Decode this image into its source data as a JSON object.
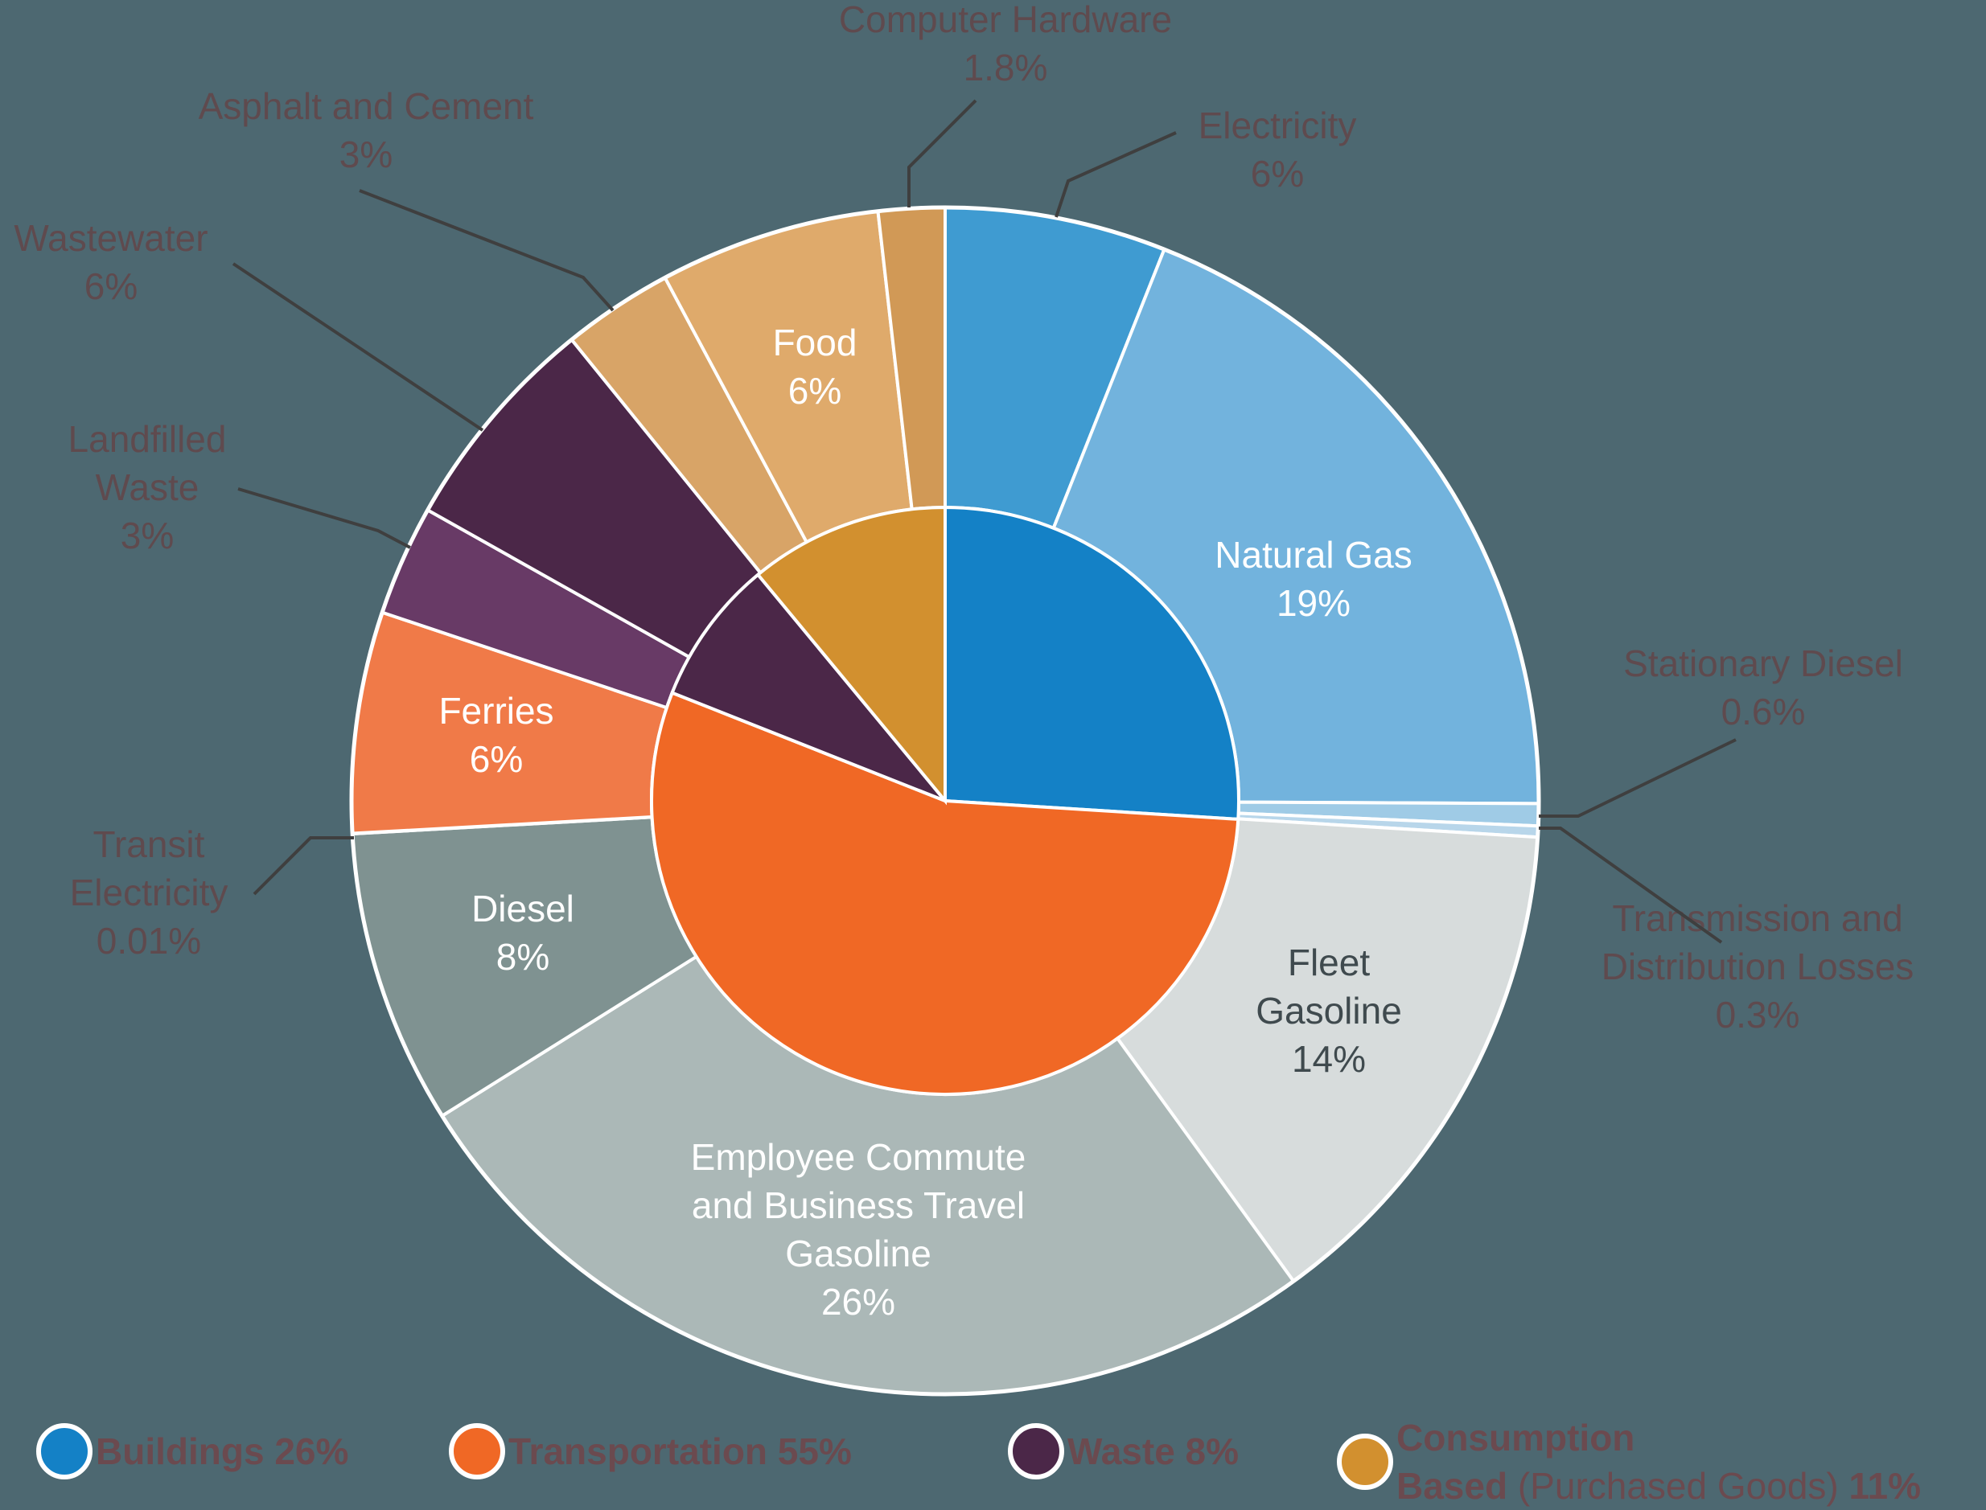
{
  "chart_data": {
    "type": "pie",
    "style": "nested donut (inner ring = categories, outer ring = subcategories)",
    "colors": {
      "background": "#4d6871",
      "label_outside": "#5f4a4e",
      "label_inside": "#ffffff",
      "label_dark": "#3f4a4e"
    },
    "categories": [
      {
        "name": "Buildings",
        "value": 26,
        "color": "#1481c6"
      },
      {
        "name": "Transportation",
        "value": 55,
        "color": "#f06825"
      },
      {
        "name": "Waste",
        "value": 8,
        "color": "#4b2748"
      },
      {
        "name": "Consumption Based",
        "value": 11,
        "color": "#d2902f"
      }
    ],
    "subcategories": [
      {
        "name": "Electricity",
        "value": 6,
        "pct_label": "6%",
        "category": "Buildings",
        "color": "#3f9bd1"
      },
      {
        "name": "Natural Gas",
        "value": 19,
        "pct_label": "19%",
        "category": "Buildings",
        "color": "#72b3dd"
      },
      {
        "name": "Stationary Diesel",
        "value": 0.6,
        "pct_label": "0.6%",
        "category": "Buildings",
        "color": "#9fcbe6"
      },
      {
        "name": "Transmission and Distribution Losses",
        "value": 0.3,
        "pct_label": "0.3%",
        "category": "Buildings",
        "color": "#b8d6ea"
      },
      {
        "name": "Fleet Gasoline",
        "value": 14,
        "pct_label": "14%",
        "category": "Transportation",
        "color": "#d7dcdc"
      },
      {
        "name": "Employee Commute and Business Travel Gasoline",
        "value": 26,
        "pct_label": "26%",
        "category": "Transportation",
        "color": "#abb8b7"
      },
      {
        "name": "Diesel",
        "value": 8,
        "pct_label": "8%",
        "category": "Transportation",
        "color": "#7f9291"
      },
      {
        "name": "Transit Electricity",
        "value": 0.01,
        "pct_label": "0.01%",
        "category": "Transportation",
        "color": "#e8784a"
      },
      {
        "name": "Ferries",
        "value": 6,
        "pct_label": "6%",
        "category": "Transportation",
        "color": "#f07a48"
      },
      {
        "name": "Landfilled Waste",
        "value": 3,
        "pct_label": "3%",
        "category": "Waste",
        "color": "#683a66"
      },
      {
        "name": "Wastewater",
        "value": 6,
        "pct_label": "6%",
        "category": "Waste",
        "color": "#4b2748"
      },
      {
        "name": "Asphalt and Cement",
        "value": 3,
        "pct_label": "3%",
        "category": "Consumption Based",
        "color": "#d8a467"
      },
      {
        "name": "Food",
        "value": 6,
        "pct_label": "6%",
        "category": "Consumption Based",
        "color": "#dfaa6b"
      },
      {
        "name": "Computer Hardware",
        "value": 1.8,
        "pct_label": "1.8%",
        "category": "Consumption Based",
        "color": "#d19956"
      }
    ],
    "inside_labels": [
      {
        "lines": [
          "Natural Gas",
          "19%"
        ],
        "slice": "Natural Gas"
      },
      {
        "lines": [
          "Food",
          "6%"
        ],
        "slice": "Food"
      },
      {
        "lines": [
          "Ferries",
          "6%"
        ],
        "slice": "Ferries"
      },
      {
        "lines": [
          "Diesel",
          "8%"
        ],
        "slice": "Diesel"
      },
      {
        "lines": [
          "Fleet",
          "Gasoline",
          "14%"
        ],
        "slice": "Fleet Gasoline"
      },
      {
        "lines": [
          "Employee Commute",
          "and Business Travel",
          "Gasoline",
          "26%"
        ],
        "slice": "Employee Commute and Business Travel Gasoline"
      }
    ],
    "outside_labels": [
      {
        "lines": [
          "Computer Hardware",
          "1.8%"
        ],
        "slice": "Computer Hardware"
      },
      {
        "lines": [
          "Electricity",
          "6%"
        ],
        "slice": "Electricity"
      },
      {
        "lines": [
          "Asphalt and Cement",
          "3%"
        ],
        "slice": "Asphalt and Cement"
      },
      {
        "lines": [
          "Wastewater",
          "6%"
        ],
        "slice": "Wastewater"
      },
      {
        "lines": [
          "Landfilled",
          "Waste",
          "3%"
        ],
        "slice": "Landfilled Waste"
      },
      {
        "lines": [
          "Transit",
          "Electricity",
          "0.01%"
        ],
        "slice": "Transit Electricity"
      },
      {
        "lines": [
          "Stationary Diesel",
          "0.6%"
        ],
        "slice": "Stationary Diesel"
      },
      {
        "lines": [
          "Transmission and",
          "Distribution Losses",
          "0.3%"
        ],
        "slice": "Transmission and Distribution Losses"
      }
    ],
    "legend": [
      {
        "bold": "Buildings 26%",
        "color": "#1481c6"
      },
      {
        "bold": "Transportation 55%",
        "color": "#f06825"
      },
      {
        "bold": "Waste 8%",
        "color": "#4b2748"
      },
      {
        "bold_line1": "Consumption",
        "bold_line2": "Based",
        "muted": "(Purchased Goods)",
        "bold_tail": "11%",
        "color": "#d2902f"
      }
    ]
  }
}
